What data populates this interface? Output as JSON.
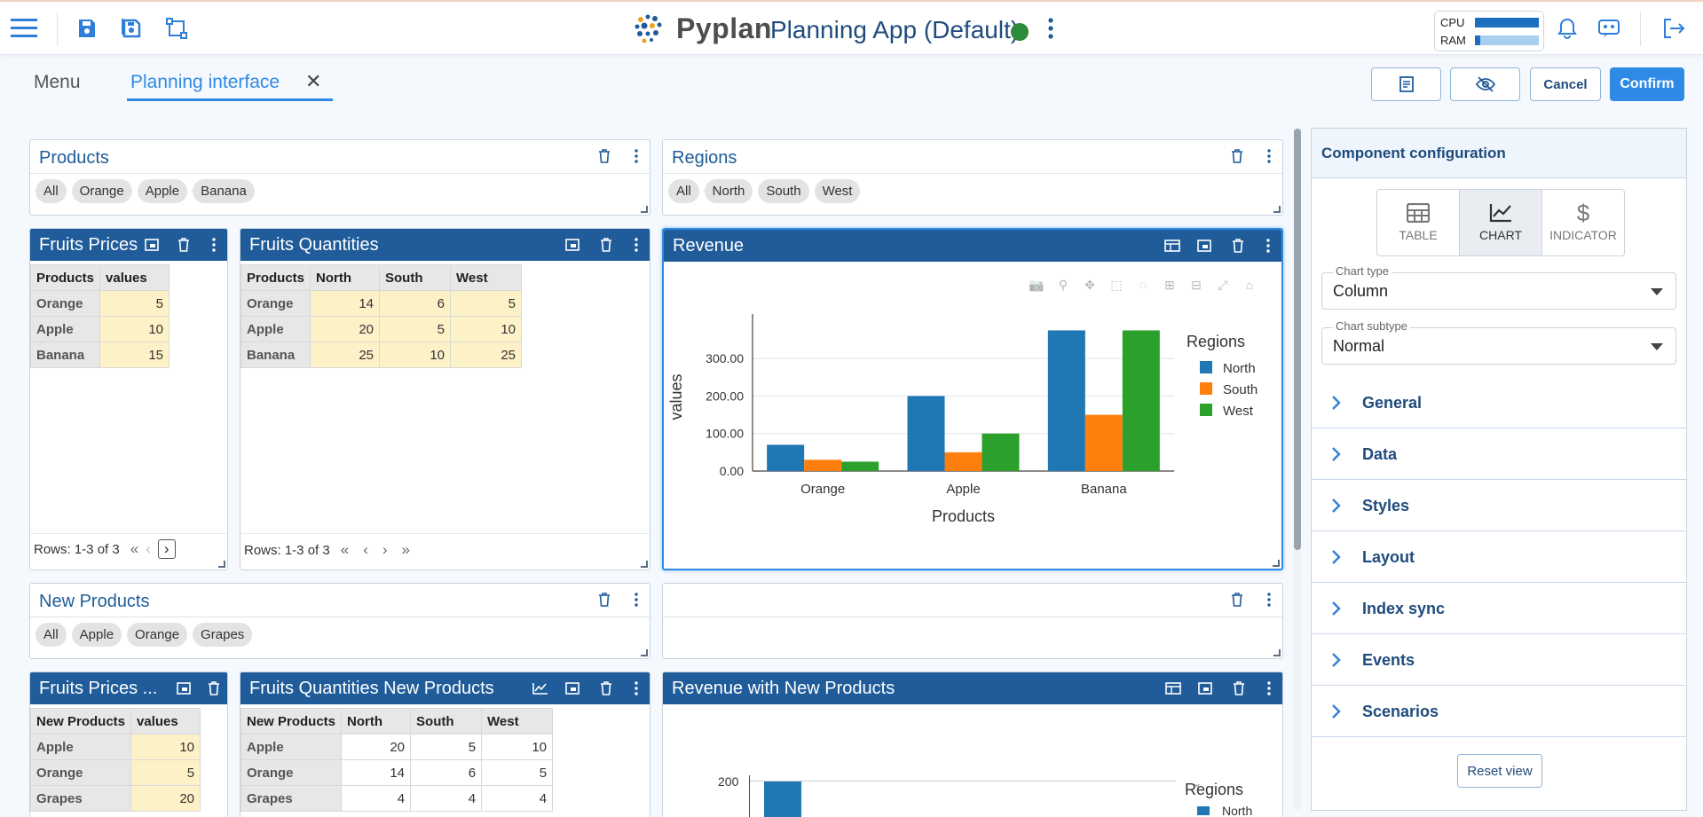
{
  "header": {
    "logo_text": "Pyplan",
    "app_title": "Planning App (Default)",
    "cpu_label": "CPU",
    "ram_label": "RAM",
    "cpu_usage": 1.0,
    "ram_usage": 0.08,
    "icons": [
      "hamburger-icon",
      "save-icon",
      "save-as-icon",
      "resize-icon",
      "kebab-menu-icon",
      "bell-icon",
      "bot-icon",
      "logout-icon"
    ]
  },
  "tabs": [
    {
      "label": "Menu",
      "active": false
    },
    {
      "label": "Planning interface",
      "active": true
    }
  ],
  "actions": {
    "cancel": "Cancel",
    "confirm": "Confirm"
  },
  "colors": {
    "primary": "#1f5c99",
    "accent": "#2f8ae5",
    "north": "#1f77b4",
    "south": "#ff7f0e",
    "west": "#2ca02c",
    "status": "#2e8a3b"
  },
  "panels": {
    "products": {
      "title": "Products",
      "chips": [
        "All",
        "Orange",
        "Apple",
        "Banana"
      ]
    },
    "regions": {
      "title": "Regions",
      "chips": [
        "All",
        "North",
        "South",
        "West"
      ]
    },
    "new_products": {
      "title": "New Products",
      "chips": [
        "All",
        "Apple",
        "Orange",
        "Grapes"
      ]
    },
    "fruits_prices": {
      "title": "Fruits Prices",
      "columns": [
        "Products",
        "values"
      ],
      "rows": [
        [
          "Orange",
          "5"
        ],
        [
          "Apple",
          "10"
        ],
        [
          "Banana",
          "15"
        ]
      ],
      "rows_text": "Rows: 1-3 of 3"
    },
    "fruits_quantities": {
      "title": "Fruits Quantities",
      "columns": [
        "Products",
        "North",
        "South",
        "West"
      ],
      "rows": [
        [
          "Orange",
          "14",
          "6",
          "5"
        ],
        [
          "Apple",
          "20",
          "5",
          "10"
        ],
        [
          "Banana",
          "25",
          "10",
          "25"
        ]
      ],
      "rows_text": "Rows: 1-3 of 3"
    },
    "revenue": {
      "title": "Revenue"
    },
    "fruits_prices_new": {
      "title": "Fruits Prices ...",
      "columns": [
        "New Products",
        "values"
      ],
      "rows": [
        [
          "Apple",
          "10"
        ],
        [
          "Orange",
          "5"
        ],
        [
          "Grapes",
          "20"
        ]
      ]
    },
    "fruits_quantities_new": {
      "title": "Fruits Quantities New Products",
      "columns": [
        "New Products",
        "North",
        "South",
        "West"
      ],
      "rows": [
        [
          "Apple",
          "20",
          "5",
          "10"
        ],
        [
          "Orange",
          "14",
          "6",
          "5"
        ],
        [
          "Grapes",
          "4",
          "4",
          "4"
        ]
      ]
    },
    "revenue_new": {
      "title": "Revenue with New Products",
      "ytick": "200",
      "legend_title": "Regions",
      "legend_first": "North"
    }
  },
  "chart_data": [
    {
      "type": "bar",
      "title": "",
      "xlabel": "Products",
      "ylabel": "values",
      "categories": [
        "Orange",
        "Apple",
        "Banana"
      ],
      "series": [
        {
          "name": "North",
          "values": [
            70,
            200,
            375
          ]
        },
        {
          "name": "South",
          "values": [
            30,
            50,
            150
          ]
        },
        {
          "name": "West",
          "values": [
            25,
            100,
            375
          ]
        }
      ],
      "yticks": [
        "0.00",
        "100.00",
        "200.00",
        "300.00"
      ],
      "ylim": [
        0,
        395
      ],
      "legend_title": "Regions",
      "legend_position": "top-right",
      "grid": true
    }
  ],
  "config": {
    "title": "Component configuration",
    "types": [
      "TABLE",
      "CHART",
      "INDICATOR"
    ],
    "active_type": "CHART",
    "chart_type_label": "Chart type",
    "chart_type_value": "Column",
    "chart_subtype_label": "Chart subtype",
    "chart_subtype_value": "Normal",
    "sections": [
      "General",
      "Data",
      "Styles",
      "Layout",
      "Index sync",
      "Events",
      "Scenarios"
    ],
    "reset_label": "Reset view"
  }
}
